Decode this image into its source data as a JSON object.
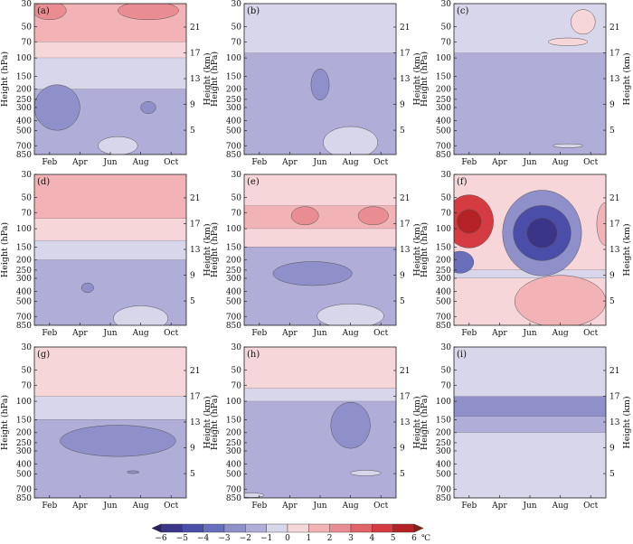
{
  "chart_data": {
    "type": "heatmap",
    "description_units": "temperature anomaly",
    "colorbar": {
      "unit": "℃",
      "levels": [
        -6,
        -5,
        -4,
        -3,
        -2,
        -1,
        0,
        1,
        2,
        3,
        4,
        5,
        6
      ],
      "labels": [
        "−6",
        "−5",
        "−4",
        "−3",
        "−2",
        "−1",
        "0",
        "1",
        "2",
        "3",
        "4",
        "5",
        "6"
      ],
      "colors": [
        "#2a1e5c",
        "#3b3587",
        "#4b4ea8",
        "#6a6fbb",
        "#8f8fc9",
        "#b0add8",
        "#d7d6ea",
        "#f6d6d8",
        "#f2b3b6",
        "#ea8d92",
        "#e06368",
        "#d43c42",
        "#b52225",
        "#862012"
      ]
    },
    "x_axis": {
      "ticks": [
        "Feb",
        "Apr",
        "Jun",
        "Aug",
        "Oct"
      ],
      "month_positions": [
        2,
        4,
        6,
        8,
        10
      ],
      "range_months": [
        1,
        11
      ]
    },
    "left_axis": {
      "label": "Height (hPa)",
      "ticks": [
        "30",
        "50",
        "70",
        "100",
        "150",
        "200",
        "250",
        "300",
        "400",
        "500",
        "700",
        "850"
      ],
      "values_hpa": [
        30,
        50,
        70,
        100,
        150,
        200,
        250,
        300,
        400,
        500,
        700,
        850
      ],
      "range_hpa": [
        30,
        850
      ]
    },
    "right_axis": {
      "label": "Height (km)",
      "ticks": [
        "21",
        "17",
        "13",
        "9",
        "5"
      ],
      "values_km": [
        21,
        17,
        13,
        9,
        5
      ]
    },
    "panels": [
      {
        "label": "(a)",
        "bands": [
          {
            "top": 30,
            "bottom": 70,
            "value": 1.5
          },
          {
            "top": 70,
            "bottom": 100,
            "value": 0.5
          },
          {
            "top": 100,
            "bottom": 200,
            "value": -0.5
          },
          {
            "top": 200,
            "bottom": 850,
            "value": -1.5
          }
        ],
        "blobs": [
          {
            "month": 2,
            "p": 35,
            "rx": 1.1,
            "rp": 10,
            "value": 2.5
          },
          {
            "month": 8.5,
            "p": 35,
            "rx": 2.0,
            "rp": 10,
            "value": 2.5
          },
          {
            "month": 2.5,
            "p": 300,
            "rx": 1.5,
            "rp": 140,
            "value": -2.5
          },
          {
            "month": 8.5,
            "p": 300,
            "rx": 0.5,
            "rp": 40,
            "value": -2.5
          },
          {
            "month": 6.5,
            "p": 700,
            "rx": 1.3,
            "rp": 140,
            "value": -0.5
          }
        ]
      },
      {
        "label": "(b)",
        "bands": [
          {
            "top": 30,
            "bottom": 90,
            "value": -0.5
          },
          {
            "top": 90,
            "bottom": 850,
            "value": -1.5
          }
        ],
        "blobs": [
          {
            "month": 6.0,
            "p": 180,
            "rx": 0.6,
            "rp": 60,
            "value": -2.5
          },
          {
            "month": 8.0,
            "p": 650,
            "rx": 1.8,
            "rp": 220,
            "value": -0.5
          }
        ]
      },
      {
        "label": "(c)",
        "bands": [
          {
            "top": 30,
            "bottom": 90,
            "value": -0.5
          },
          {
            "top": 90,
            "bottom": 850,
            "value": -1.5
          }
        ],
        "blobs": [
          {
            "month": 9.5,
            "p": 45,
            "rx": 0.8,
            "rp": 12,
            "value": 0.5
          },
          {
            "month": 8.5,
            "p": 70,
            "rx": 1.3,
            "rp": 6,
            "value": 0.5
          },
          {
            "month": 8.5,
            "p": 700,
            "rx": 1.0,
            "rp": 30,
            "value": -0.5
          }
        ]
      },
      {
        "label": "(d)",
        "bands": [
          {
            "top": 30,
            "bottom": 80,
            "value": 1.5
          },
          {
            "top": 80,
            "bottom": 130,
            "value": 0.5
          },
          {
            "top": 130,
            "bottom": 200,
            "value": -0.5
          },
          {
            "top": 200,
            "bottom": 850,
            "value": -1.5
          }
        ],
        "blobs": [
          {
            "month": 4.5,
            "p": 370,
            "rx": 0.4,
            "rp": 40,
            "value": -2.5
          },
          {
            "month": 8.0,
            "p": 730,
            "rx": 1.8,
            "rp": 200,
            "value": -0.5
          }
        ]
      },
      {
        "label": "(e)",
        "bands": [
          {
            "top": 30,
            "bottom": 60,
            "value": 0.5
          },
          {
            "top": 60,
            "bottom": 100,
            "value": 1.5
          },
          {
            "top": 100,
            "bottom": 150,
            "value": 0.5
          },
          {
            "top": 150,
            "bottom": 850,
            "value": -1.5
          }
        ],
        "blobs": [
          {
            "month": 5.0,
            "p": 75,
            "rx": 0.9,
            "rp": 15,
            "value": 2.5
          },
          {
            "month": 9.5,
            "p": 75,
            "rx": 1.0,
            "rp": 15,
            "value": 2.5
          },
          {
            "month": 5.5,
            "p": 270,
            "rx": 2.6,
            "rp": 70,
            "value": -2.5
          },
          {
            "month": 8.0,
            "p": 690,
            "rx": 2.2,
            "rp": 180,
            "value": -0.5
          }
        ]
      },
      {
        "label": "(f)",
        "bands": [
          {
            "top": 30,
            "bottom": 250,
            "value": 0.5
          },
          {
            "top": 250,
            "bottom": 300,
            "value": -0.5
          },
          {
            "top": 300,
            "bottom": 850,
            "value": 0.5
          }
        ],
        "blobs": [
          {
            "month": 2.0,
            "p": 85,
            "rx": 1.6,
            "rp": 45,
            "value": 4.5
          },
          {
            "month": 2.0,
            "p": 85,
            "rx": 0.8,
            "rp": 22,
            "value": 5.5
          },
          {
            "month": 6.8,
            "p": 110,
            "rx": 2.6,
            "rp": 90,
            "value": -2.5
          },
          {
            "month": 6.8,
            "p": 110,
            "rx": 1.9,
            "rp": 60,
            "value": -4.5
          },
          {
            "month": 6.8,
            "p": 110,
            "rx": 1.0,
            "rp": 35,
            "value": -5.5
          },
          {
            "month": 1.4,
            "p": 210,
            "rx": 0.9,
            "rp": 50,
            "value": -3.5
          },
          {
            "month": 8.0,
            "p": 500,
            "rx": 3.0,
            "rp": 260,
            "value": 1.5
          },
          {
            "month": 11.0,
            "p": 90,
            "rx": 0.6,
            "rp": 40,
            "value": 1.5
          }
        ]
      },
      {
        "label": "(g)",
        "bands": [
          {
            "top": 30,
            "bottom": 90,
            "value": 0.5
          },
          {
            "top": 90,
            "bottom": 150,
            "value": -0.5
          },
          {
            "top": 150,
            "bottom": 850,
            "value": -1.5
          }
        ],
        "blobs": [
          {
            "month": 6.5,
            "p": 240,
            "rx": 3.8,
            "rp": 80,
            "value": -2.5
          },
          {
            "month": 7.5,
            "p": 480,
            "rx": 0.4,
            "rp": 15,
            "value": -2.5
          }
        ]
      },
      {
        "label": "(h)",
        "bands": [
          {
            "top": 30,
            "bottom": 75,
            "value": 0.5
          },
          {
            "top": 75,
            "bottom": 100,
            "value": -0.5
          },
          {
            "top": 100,
            "bottom": 850,
            "value": -1.5
          }
        ],
        "blobs": [
          {
            "month": 8.0,
            "p": 170,
            "rx": 1.3,
            "rp": 80,
            "value": -2.5
          },
          {
            "month": 9.0,
            "p": 490,
            "rx": 1.0,
            "rp": 30,
            "value": -0.5
          },
          {
            "month": 1.5,
            "p": 800,
            "rx": 0.8,
            "rp": 40,
            "value": -0.5
          }
        ]
      },
      {
        "label": "(i)",
        "bands": [
          {
            "top": 30,
            "bottom": 90,
            "value": -0.5
          },
          {
            "top": 90,
            "bottom": 140,
            "value": -2.5
          },
          {
            "top": 140,
            "bottom": 200,
            "value": -1.5
          },
          {
            "top": 200,
            "bottom": 850,
            "value": -0.5
          }
        ],
        "blobs": []
      }
    ]
  }
}
